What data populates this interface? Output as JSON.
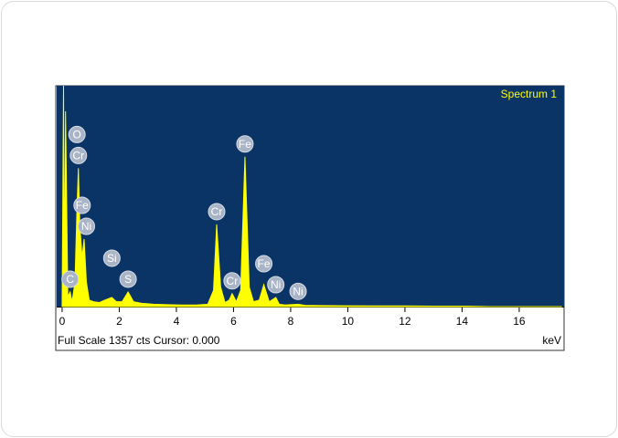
{
  "chart_data": {
    "type": "spectrum",
    "title": "Spectrum 1",
    "footer": "Full Scale 1357 cts Cursor: 0.000",
    "x_label": "keV",
    "x": [
      0,
      0.05,
      0.08,
      0.12,
      0.2,
      0.28,
      0.35,
      0.45,
      0.52,
      0.57,
      0.62,
      0.7,
      0.77,
      0.85,
      0.95,
      1.1,
      1.3,
      1.5,
      1.74,
      1.9,
      2.1,
      2.31,
      2.5,
      2.8,
      3.2,
      3.7,
      4.2,
      4.7,
      5.1,
      5.3,
      5.41,
      5.55,
      5.7,
      5.85,
      5.95,
      6.1,
      6.25,
      6.4,
      6.55,
      6.7,
      6.9,
      7.06,
      7.25,
      7.48,
      7.6,
      7.8,
      8.26,
      8.5,
      9,
      10,
      11,
      12,
      13,
      14.2,
      15,
      16,
      17.5
    ],
    "values": [
      0,
      1357,
      100,
      1200,
      60,
      90,
      30,
      150,
      600,
      850,
      500,
      300,
      415,
      150,
      40,
      30,
      25,
      40,
      56,
      30,
      30,
      90,
      30,
      20,
      15,
      12,
      10,
      10,
      15,
      100,
      505,
      120,
      25,
      40,
      80,
      30,
      100,
      921,
      120,
      30,
      40,
      135,
      30,
      56,
      15,
      10,
      15,
      8,
      6,
      5,
      4,
      4,
      3,
      3,
      0,
      0,
      0
    ],
    "color": "#ffff00",
    "background": "#0a3366",
    "peaks": [
      {
        "label": "C",
        "x": 0.28
      },
      {
        "label": "O",
        "x": 0.52
      },
      {
        "label": "Cr",
        "x": 0.57
      },
      {
        "label": "Fe",
        "x": 0.7
      },
      {
        "label": "Ni",
        "x": 0.85
      },
      {
        "label": "Si",
        "x": 1.74
      },
      {
        "label": "S",
        "x": 2.31
      },
      {
        "label": "Cr",
        "x": 5.41
      },
      {
        "label": "Cr",
        "x": 5.95
      },
      {
        "label": "Fe",
        "x": 6.4
      },
      {
        "label": "Fe",
        "x": 7.06
      },
      {
        "label": "Ni",
        "x": 7.48
      },
      {
        "label": "Ni",
        "x": 8.26
      }
    ],
    "xlim": [
      -0.19,
      17.57
    ],
    "xticks": [
      0,
      2,
      4,
      6,
      8,
      10,
      12,
      14,
      16
    ],
    "ylim": [
      0,
      1357
    ]
  }
}
